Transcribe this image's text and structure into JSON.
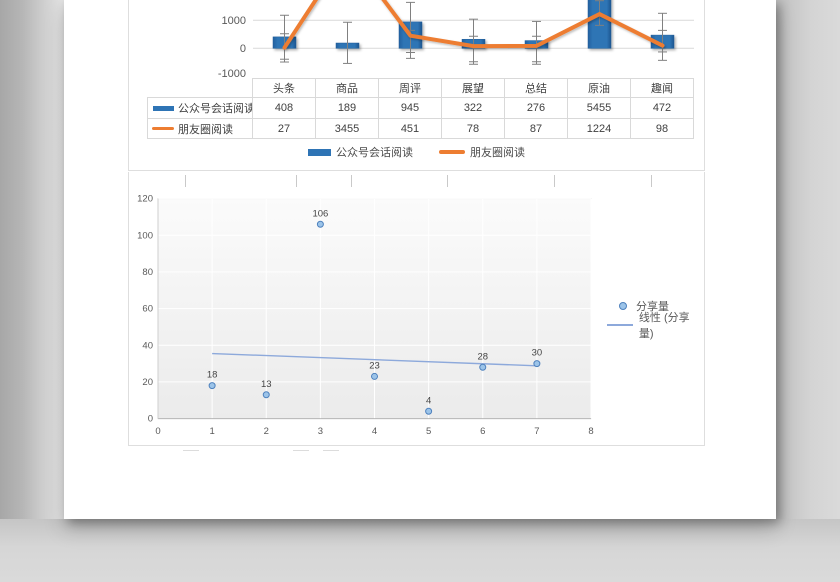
{
  "document": {
    "kind": "spreadsheet print preview with two charts"
  },
  "chart_data": [
    {
      "type": "bar",
      "subtype": "combo-bar-line",
      "categories": [
        "头条",
        "商品",
        "周评",
        "展望",
        "总结",
        "原油",
        "趣闻"
      ],
      "series": [
        {
          "name": "公众号会话阅读",
          "kind": "bar",
          "color": "#2E74B5",
          "values": [
            408,
            189,
            945,
            322,
            276,
            5455,
            472
          ]
        },
        {
          "name": "朋友圈阅读",
          "kind": "line",
          "color": "#ED7D31",
          "values": [
            27,
            3455,
            451,
            78,
            87,
            1224,
            98
          ]
        }
      ],
      "error_bars": {
        "bar": [
          [
            1180,
            -390
          ],
          [
            930,
            -540
          ],
          [
            1640,
            -150
          ],
          [
            1040,
            -480
          ],
          [
            960,
            -480
          ],
          [
            1700,
            820
          ],
          [
            1250,
            -130
          ]
        ],
        "line": [
          [
            520,
            -490
          ],
          null,
          [
            640,
            -360
          ],
          [
            430,
            -570
          ],
          [
            430,
            -570
          ],
          null,
          [
            640,
            -430
          ]
        ]
      },
      "y_axis": {
        "ticks": [
          {
            "label": "1000",
            "value": 1000
          },
          {
            "label": "0",
            "value": 0
          },
          {
            "label": "-1000",
            "value": -1000
          }
        ],
        "gridline_values": [
          1000,
          0
        ],
        "cropped_top": true
      },
      "legend": [
        "公众号会话阅读",
        "朋友圈阅读"
      ],
      "legend_position": "bottom"
    },
    {
      "type": "scatter",
      "x": [
        1,
        2,
        3,
        4,
        5,
        6,
        7
      ],
      "y": [
        18,
        13,
        106,
        23,
        4,
        28,
        30
      ],
      "point_labels": [
        "18",
        "13",
        "106",
        "23",
        "4",
        "28",
        "30"
      ],
      "trendline": {
        "x1": 1,
        "y1": 35.5,
        "x2": 7,
        "y2": 28.8
      },
      "xlim": [
        0,
        8
      ],
      "ylim": [
        0,
        120
      ],
      "x_tick_labels": [
        "0",
        "1",
        "2",
        "3",
        "4",
        "5",
        "6",
        "7",
        "8"
      ],
      "y_tick_labels": [
        "0",
        "20",
        "40",
        "60",
        "80",
        "100",
        "120"
      ],
      "grid": true,
      "legend": [
        {
          "label": "分享量",
          "swatch": "marker"
        },
        {
          "label": "线性 (分享量)",
          "swatch": "line"
        }
      ],
      "legend_position": "right",
      "colors": {
        "marker_fill": "#9CC4E9",
        "marker_stroke": "#4E81BD",
        "trendline": "#8DA9DB"
      }
    }
  ],
  "table": {
    "corner_label": "",
    "columns": [
      "头条",
      "商品",
      "周评",
      "展望",
      "总结",
      "原油",
      "趣闻"
    ],
    "rows": [
      {
        "header": "公众号会话阅读",
        "swatch": "bar",
        "values": [
          "408",
          "189",
          "945",
          "322",
          "276",
          "5455",
          "472"
        ]
      },
      {
        "header": "朋友圈阅读",
        "swatch": "line",
        "values": [
          "27",
          "3455",
          "451",
          "78",
          "87",
          "1224",
          "98"
        ]
      }
    ]
  },
  "colors": {
    "bar": "#2E74B5",
    "bar_edge": "#1F5C99",
    "line": "#ED7D31",
    "grid": "#d9d9d9",
    "axis_text": "#595959",
    "table_text": "#404040",
    "error_bar": "#808080"
  }
}
